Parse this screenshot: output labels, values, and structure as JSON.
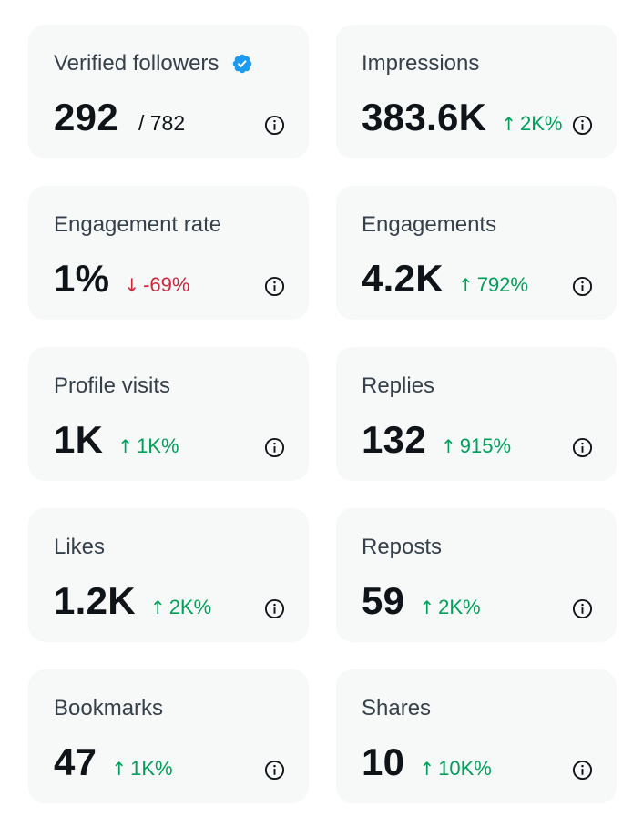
{
  "colors": {
    "card_bg": "#f7f9f9",
    "up": "#00a05a",
    "down": "#d0263b",
    "verified": "#1d9bf0"
  },
  "cards": [
    {
      "title": "Verified followers",
      "value": "292",
      "secondary": "/ 782",
      "verified_icon": "verified-badge-icon"
    },
    {
      "title": "Impressions",
      "value": "383.6K",
      "delta": "2K%",
      "direction": "up"
    },
    {
      "title": "Engagement rate",
      "value": "1%",
      "delta": "-69%",
      "direction": "down"
    },
    {
      "title": "Engagements",
      "value": "4.2K",
      "delta": "792%",
      "direction": "up"
    },
    {
      "title": "Profile visits",
      "value": "1K",
      "delta": "1K%",
      "direction": "up"
    },
    {
      "title": "Replies",
      "value": "132",
      "delta": "915%",
      "direction": "up"
    },
    {
      "title": "Likes",
      "value": "1.2K",
      "delta": "2K%",
      "direction": "up"
    },
    {
      "title": "Reposts",
      "value": "59",
      "delta": "2K%",
      "direction": "up"
    },
    {
      "title": "Bookmarks",
      "value": "47",
      "delta": "1K%",
      "direction": "up"
    },
    {
      "title": "Shares",
      "value": "10",
      "delta": "10K%",
      "direction": "up"
    }
  ]
}
